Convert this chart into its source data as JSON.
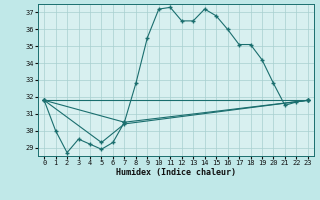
{
  "title": "",
  "xlabel": "Humidex (Indice chaleur)",
  "ylabel": "",
  "bg_color": "#c0e8e8",
  "plot_bg_color": "#d8f0f0",
  "line_color": "#1a6e6e",
  "grid_color": "#a8d0d0",
  "xlim": [
    -0.5,
    23.5
  ],
  "ylim": [
    28.5,
    37.5
  ],
  "yticks": [
    29,
    30,
    31,
    32,
    33,
    34,
    35,
    36,
    37
  ],
  "xticks": [
    0,
    1,
    2,
    3,
    4,
    5,
    6,
    7,
    8,
    9,
    10,
    11,
    12,
    13,
    14,
    15,
    16,
    17,
    18,
    19,
    20,
    21,
    22,
    23
  ],
  "main_series": [
    [
      0,
      31.8
    ],
    [
      1,
      30.0
    ],
    [
      2,
      28.7
    ],
    [
      3,
      29.5
    ],
    [
      4,
      29.2
    ],
    [
      5,
      28.9
    ],
    [
      6,
      29.3
    ],
    [
      7,
      30.5
    ],
    [
      8,
      32.8
    ],
    [
      9,
      35.5
    ],
    [
      10,
      37.2
    ],
    [
      11,
      37.3
    ],
    [
      12,
      36.5
    ],
    [
      13,
      36.5
    ],
    [
      14,
      37.2
    ],
    [
      15,
      36.8
    ],
    [
      16,
      36.0
    ],
    [
      17,
      35.1
    ],
    [
      18,
      35.1
    ],
    [
      19,
      34.2
    ],
    [
      20,
      32.8
    ],
    [
      21,
      31.5
    ],
    [
      22,
      31.7
    ],
    [
      23,
      31.8
    ]
  ],
  "line2": [
    [
      0,
      31.8
    ],
    [
      23,
      31.8
    ]
  ],
  "line3": [
    [
      0,
      31.8
    ],
    [
      7,
      30.5
    ],
    [
      23,
      31.8
    ]
  ],
  "line4": [
    [
      0,
      31.8
    ],
    [
      5,
      29.3
    ],
    [
      7,
      30.4
    ],
    [
      23,
      31.8
    ]
  ]
}
